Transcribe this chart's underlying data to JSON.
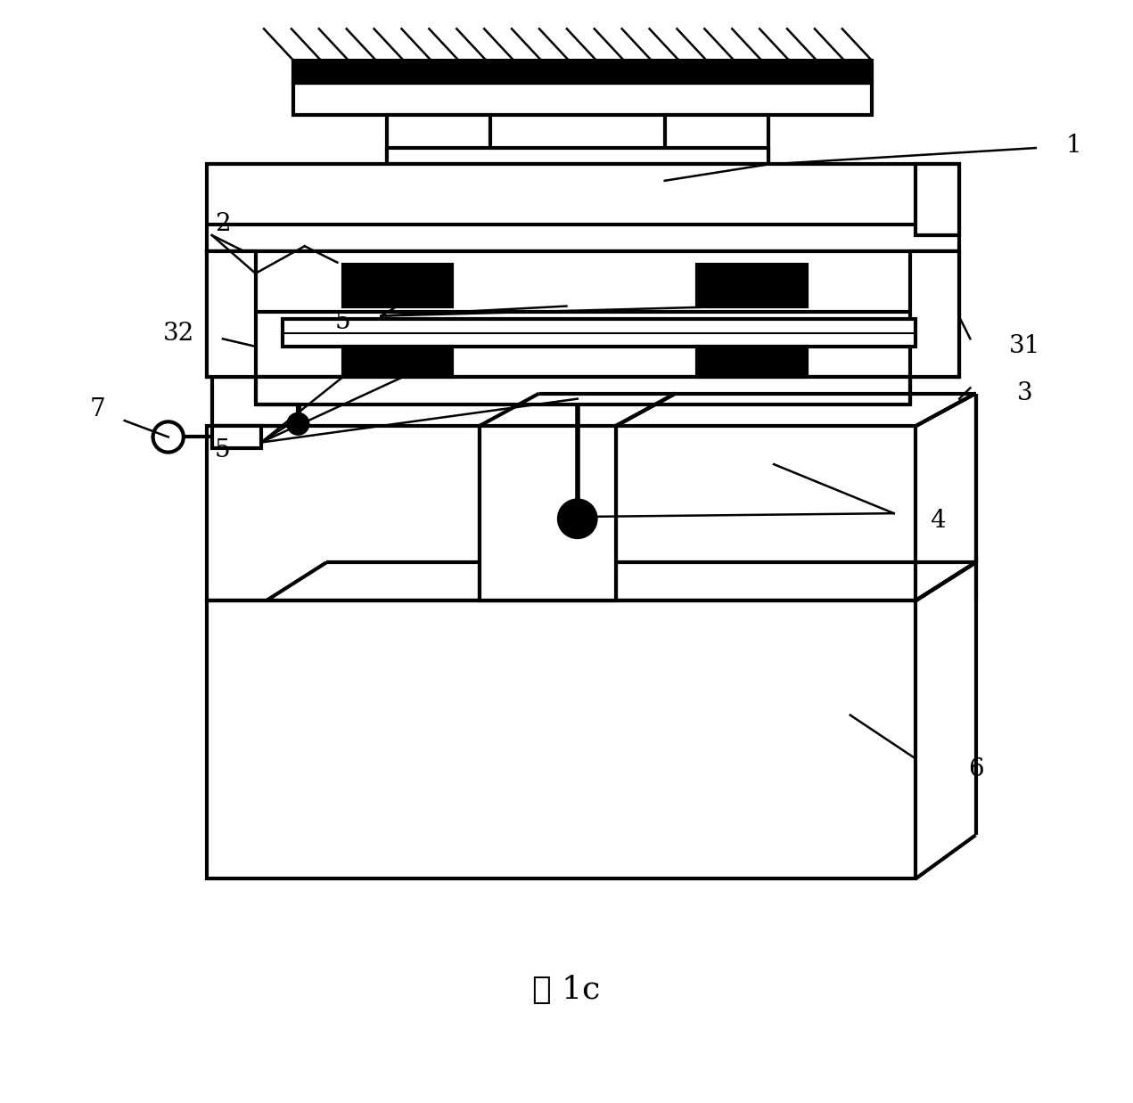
{
  "title": "图 1c",
  "bg_color": "#ffffff",
  "lw": 3.0,
  "lw_ann": 1.8,
  "label_fs": 20,
  "caption_fs": 26
}
